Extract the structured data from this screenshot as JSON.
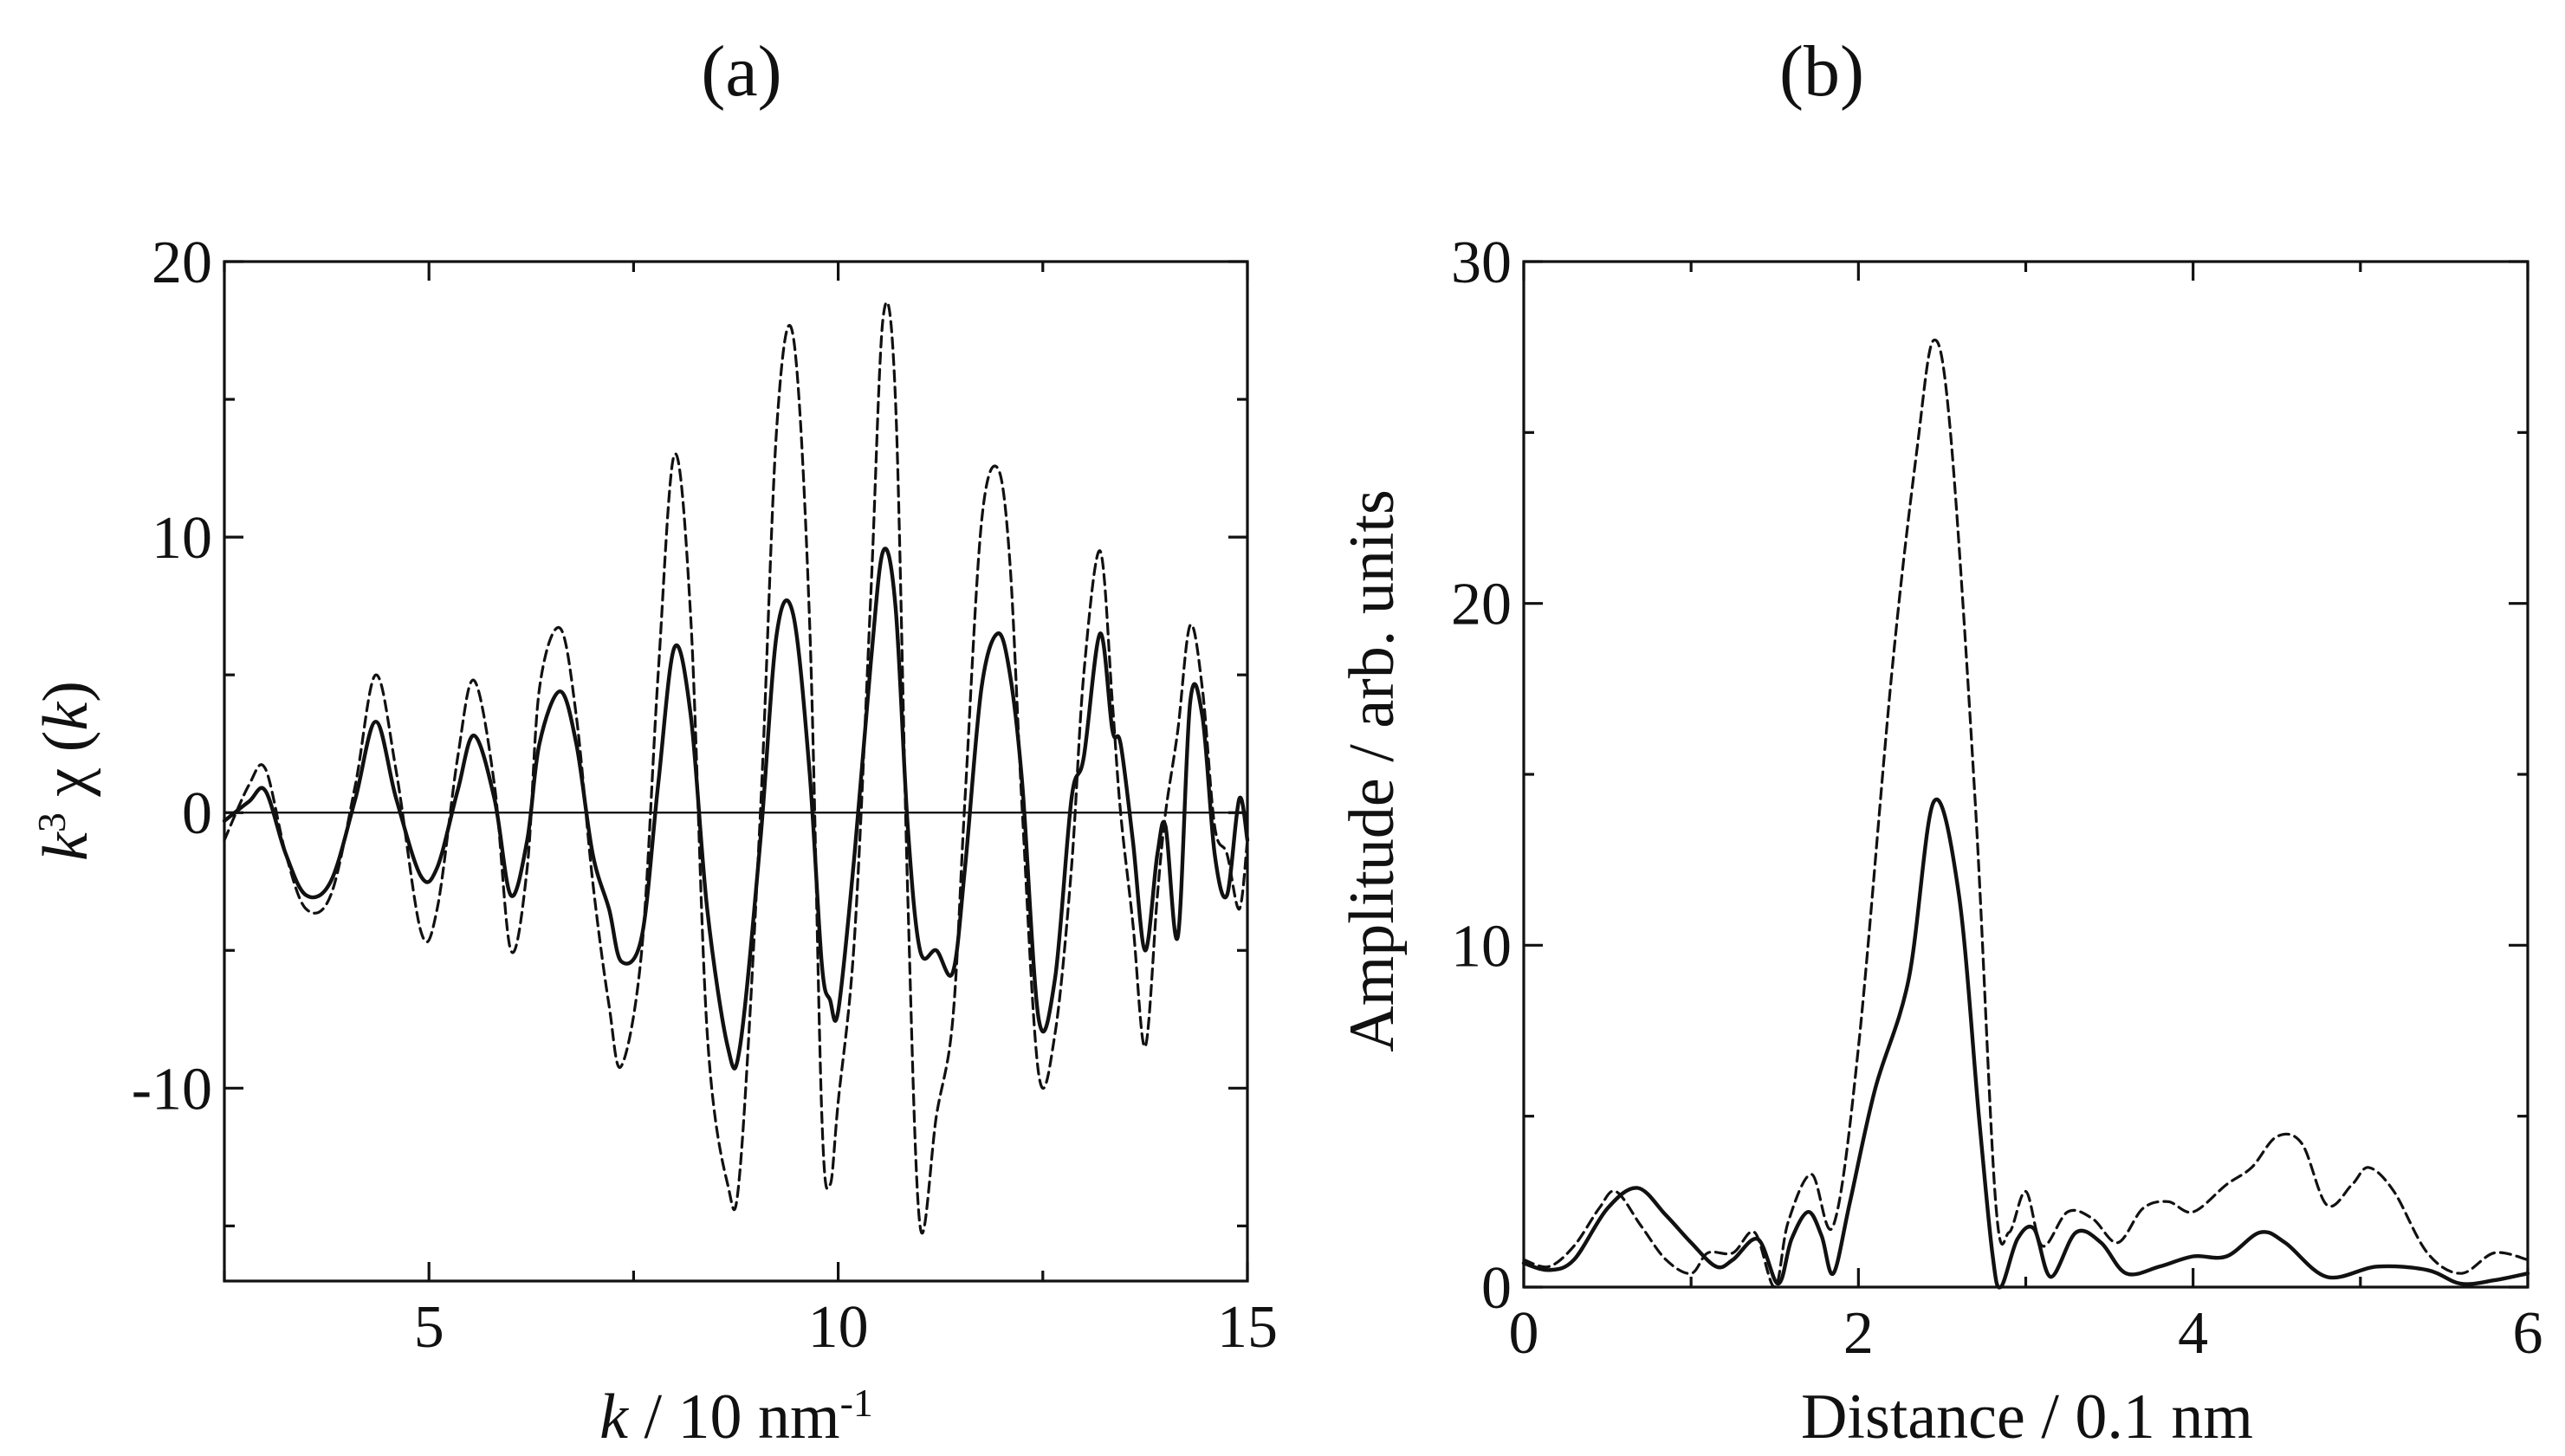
{
  "figure": {
    "panel_a_label": "(a)",
    "panel_b_label": "(b)"
  },
  "chart_data": [
    {
      "id": "a",
      "type": "line",
      "title": "(a)",
      "xlabel_italic": "k",
      "xlabel_rest": " / 10 nm",
      "xlabel_sup": "-1",
      "ylabel_k": "k",
      "ylabel_sup": "3",
      "ylabel_chi": " χ (",
      "ylabel_k2": "k",
      "ylabel_close": ")",
      "xlim": [
        2.5,
        15
      ],
      "ylim": [
        -17,
        20
      ],
      "xticks": [
        5,
        10,
        15
      ],
      "xtick_labels": [
        "5",
        "10",
        "15"
      ],
      "yticks": [
        -10,
        0,
        10,
        20
      ],
      "ytick_labels": [
        "-10",
        "0",
        "10",
        "20"
      ],
      "x_minor_ticks": [
        2.5,
        7.5,
        12.5
      ],
      "y_minor_ticks": [
        -15,
        -5,
        5,
        15
      ],
      "zero_line": true,
      "series": [
        {
          "name": "solid",
          "style": "solid",
          "color": "#111111",
          "x": [
            2.5,
            2.8,
            3.0,
            3.25,
            3.5,
            3.8,
            4.1,
            4.35,
            4.6,
            4.9,
            5.1,
            5.35,
            5.55,
            5.8,
            6.0,
            6.2,
            6.35,
            6.6,
            6.8,
            7.0,
            7.2,
            7.35,
            7.6,
            7.8,
            8.0,
            8.2,
            8.4,
            8.65,
            8.8,
            9.05,
            9.25,
            9.45,
            9.65,
            9.8,
            9.9,
            10.0,
            10.2,
            10.4,
            10.55,
            10.7,
            10.85,
            11.0,
            11.2,
            11.4,
            11.55,
            11.75,
            11.95,
            12.1,
            12.25,
            12.45,
            12.65,
            12.85,
            13.0,
            13.2,
            13.35,
            13.45,
            13.6,
            13.75,
            13.9,
            14.0,
            14.15,
            14.3,
            14.45,
            14.6,
            14.75,
            14.9,
            15.0
          ],
          "y": [
            -0.3,
            0.4,
            0.8,
            -1.5,
            -3.0,
            -2.5,
            0.5,
            3.3,
            0.5,
            -2.3,
            -2.0,
            0.8,
            2.8,
            0.5,
            -3.0,
            -1.0,
            2.5,
            4.4,
            2.5,
            -1.5,
            -3.5,
            -5.4,
            -4.5,
            1.0,
            6.0,
            3.5,
            -3.5,
            -8.5,
            -8.5,
            -1.0,
            6.5,
            7.2,
            1.5,
            -5.5,
            -6.8,
            -7.2,
            -1.5,
            5.5,
            9.5,
            7.5,
            -0.5,
            -5.0,
            -5.0,
            -5.8,
            -2.0,
            4.5,
            6.5,
            5.0,
            1.0,
            -7.5,
            -6.0,
            0.5,
            2.0,
            6.5,
            3.0,
            2.5,
            -1.0,
            -5.0,
            -1.5,
            -0.5,
            -4.5,
            4.0,
            3.5,
            -1.5,
            -3.0,
            0.5,
            -1.0
          ]
        },
        {
          "name": "dashed",
          "style": "dashed",
          "color": "#111111",
          "x": [
            2.5,
            2.8,
            3.0,
            3.25,
            3.5,
            3.8,
            4.1,
            4.35,
            4.6,
            4.9,
            5.1,
            5.35,
            5.55,
            5.8,
            6.0,
            6.2,
            6.35,
            6.6,
            6.8,
            7.0,
            7.2,
            7.35,
            7.6,
            7.8,
            8.0,
            8.2,
            8.4,
            8.65,
            8.8,
            9.05,
            9.25,
            9.45,
            9.65,
            9.8,
            9.9,
            10.0,
            10.2,
            10.4,
            10.55,
            10.7,
            10.85,
            11.0,
            11.2,
            11.4,
            11.55,
            11.75,
            11.95,
            12.1,
            12.25,
            12.45,
            12.65,
            12.85,
            13.0,
            13.2,
            13.35,
            13.45,
            13.6,
            13.75,
            13.9,
            14.0,
            14.15,
            14.3,
            14.45,
            14.6,
            14.75,
            14.9,
            15.0
          ],
          "y": [
            -1.0,
            1.0,
            1.6,
            -1.5,
            -3.5,
            -3.0,
            1.0,
            5.0,
            1.5,
            -4.3,
            -3.5,
            2.0,
            4.8,
            1.0,
            -5.0,
            -2.0,
            4.5,
            6.7,
            3.5,
            -2.5,
            -7.0,
            -9.2,
            -5.0,
            5.0,
            13.0,
            7.0,
            -8.0,
            -13.5,
            -13.0,
            0.0,
            14.0,
            17.3,
            7.0,
            -11.0,
            -13.5,
            -10.5,
            -4.5,
            8.0,
            18.0,
            15.0,
            -3.0,
            -15.0,
            -11.0,
            -7.5,
            0.5,
            10.5,
            12.5,
            9.0,
            0.0,
            -9.5,
            -8.0,
            -2.0,
            5.0,
            9.5,
            4.0,
            0.0,
            -4.0,
            -8.5,
            -3.0,
            0.0,
            3.0,
            6.8,
            4.5,
            -0.5,
            -1.5,
            -3.5,
            -1.0
          ]
        }
      ]
    },
    {
      "id": "b",
      "type": "line",
      "title": "(b)",
      "xlabel": "Distance / 0.1 nm",
      "ylabel": "Amplitude / arb. units",
      "xlim": [
        0,
        6
      ],
      "ylim": [
        0,
        30
      ],
      "xticks": [
        0,
        2,
        4,
        6
      ],
      "xtick_labels": [
        "0",
        "2",
        "4",
        "6"
      ],
      "yticks": [
        0,
        10,
        20,
        30
      ],
      "ytick_labels": [
        "0",
        "10",
        "20",
        "30"
      ],
      "x_minor_ticks": [
        1,
        3,
        5
      ],
      "y_minor_ticks": [
        5,
        15,
        25
      ],
      "zero_line": false,
      "series": [
        {
          "name": "solid",
          "style": "solid",
          "color": "#111111",
          "x": [
            0.0,
            0.15,
            0.3,
            0.5,
            0.68,
            0.85,
            1.0,
            1.15,
            1.25,
            1.4,
            1.52,
            1.6,
            1.7,
            1.78,
            1.85,
            1.95,
            2.1,
            2.3,
            2.45,
            2.6,
            2.72,
            2.8,
            2.85,
            2.95,
            3.05,
            3.15,
            3.3,
            3.45,
            3.6,
            3.8,
            4.0,
            4.2,
            4.4,
            4.55,
            4.8,
            5.1,
            5.4,
            5.6,
            5.8,
            6.0
          ],
          "y": [
            0.7,
            0.5,
            0.8,
            2.3,
            2.9,
            2.1,
            1.3,
            0.6,
            0.8,
            1.4,
            0.1,
            1.4,
            2.2,
            1.5,
            0.4,
            2.5,
            5.8,
            9.0,
            14.2,
            11.5,
            5.0,
            1.0,
            0.0,
            1.4,
            1.7,
            0.3,
            1.6,
            1.3,
            0.4,
            0.6,
            0.9,
            0.9,
            1.6,
            1.3,
            0.3,
            0.6,
            0.5,
            0.1,
            0.2,
            0.4
          ]
        },
        {
          "name": "dashed",
          "style": "dashed",
          "color": "#111111",
          "x": [
            0.0,
            0.15,
            0.3,
            0.45,
            0.55,
            0.7,
            0.85,
            1.0,
            1.1,
            1.25,
            1.38,
            1.5,
            1.58,
            1.72,
            1.85,
            2.0,
            2.2,
            2.35,
            2.45,
            2.55,
            2.7,
            2.82,
            2.9,
            3.0,
            3.1,
            3.25,
            3.4,
            3.55,
            3.7,
            3.85,
            4.0,
            4.2,
            4.35,
            4.5,
            4.65,
            4.8,
            4.95,
            5.05,
            5.2,
            5.4,
            5.6,
            5.8,
            6.0
          ],
          "y": [
            0.8,
            0.6,
            1.2,
            2.3,
            2.8,
            1.8,
            0.8,
            0.4,
            1.0,
            1.0,
            1.6,
            0.0,
            1.9,
            3.3,
            1.8,
            7.0,
            18.0,
            24.5,
            27.7,
            25.0,
            14.0,
            2.5,
            1.6,
            2.8,
            1.2,
            2.2,
            2.0,
            1.3,
            2.3,
            2.5,
            2.2,
            3.0,
            3.5,
            4.4,
            4.2,
            2.4,
            3.0,
            3.5,
            2.8,
            1.0,
            0.4,
            1.0,
            0.8
          ]
        }
      ]
    }
  ]
}
